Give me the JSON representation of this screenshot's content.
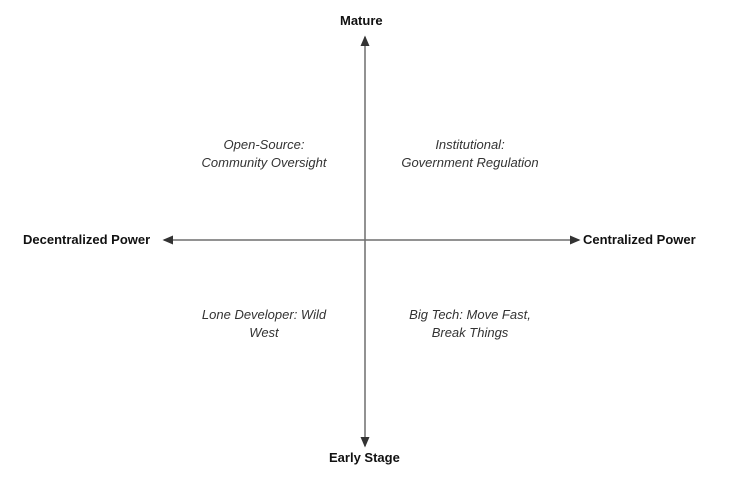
{
  "axes": {
    "top": "Mature",
    "bottom": "Early Stage",
    "left": "Decentralized Power",
    "right": "Centralized Power"
  },
  "quadrants": {
    "top_left": [
      "Open-Source:",
      "Community Oversight"
    ],
    "top_right": [
      "Institutional:",
      "Government Regulation"
    ],
    "bottom_left": [
      "Lone Developer: Wild",
      "West"
    ],
    "bottom_right": [
      "Big Tech: Move Fast,",
      "Break Things"
    ]
  },
  "colors": {
    "axis_line": "#6f6f6f",
    "text": "#333333"
  }
}
